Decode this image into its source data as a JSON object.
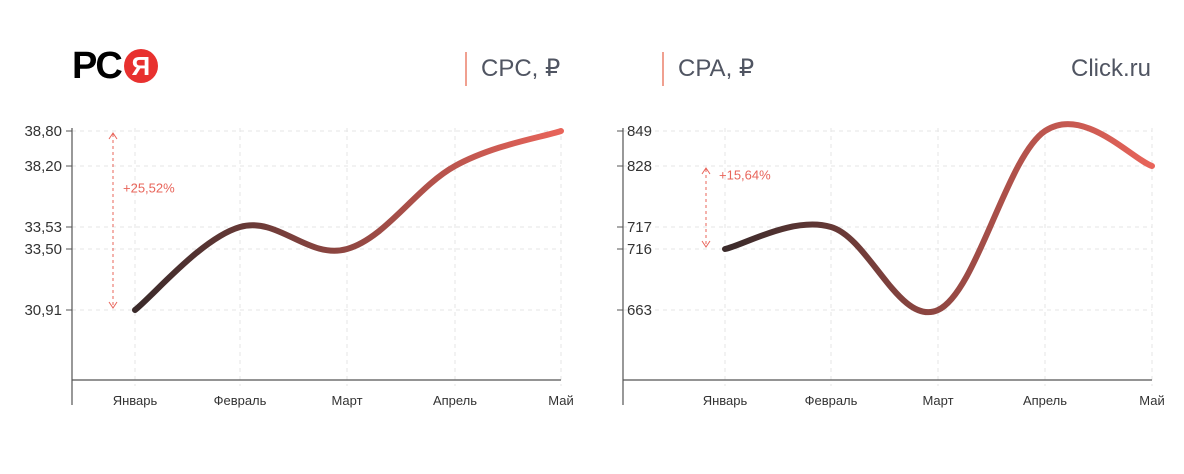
{
  "header": {
    "logo_text": "РС",
    "logo_badge": "Я",
    "brand": "Click.ru"
  },
  "colors": {
    "line_start": "#3a2a2a",
    "line_end": "#e8645a",
    "annotation": "#e8645a",
    "axis": "#555555",
    "grid": "#e5e5e5",
    "tick_text": "#333333",
    "logo_red": "#e8312f"
  },
  "chart_data": [
    {
      "type": "line",
      "title": "CPC, ₽",
      "categories": [
        "Январь",
        "Февраль",
        "Март",
        "Апрель",
        "Май"
      ],
      "values": [
        30.91,
        33.53,
        33.5,
        38.2,
        38.8
      ],
      "y_tick_labels": [
        "38,80",
        "38,20",
        "33,53",
        "33,50",
        "30,91"
      ],
      "y_tick_values": [
        38.8,
        38.2,
        33.53,
        33.5,
        30.91
      ],
      "annotation": {
        "text": "+25,52%",
        "from": 30.91,
        "to": 38.8
      },
      "grid": true
    },
    {
      "type": "line",
      "title": "CPA, ₽",
      "categories": [
        "Январь",
        "Февраль",
        "Март",
        "Апрель",
        "Май"
      ],
      "values": [
        716,
        717,
        663,
        849,
        828
      ],
      "y_tick_labels": [
        "849",
        "828",
        "717",
        "716",
        "663"
      ],
      "y_tick_values": [
        849,
        828,
        717,
        716,
        663
      ],
      "annotation": {
        "text": "+15,64%",
        "from": 716,
        "to": 828
      },
      "grid": true
    }
  ]
}
